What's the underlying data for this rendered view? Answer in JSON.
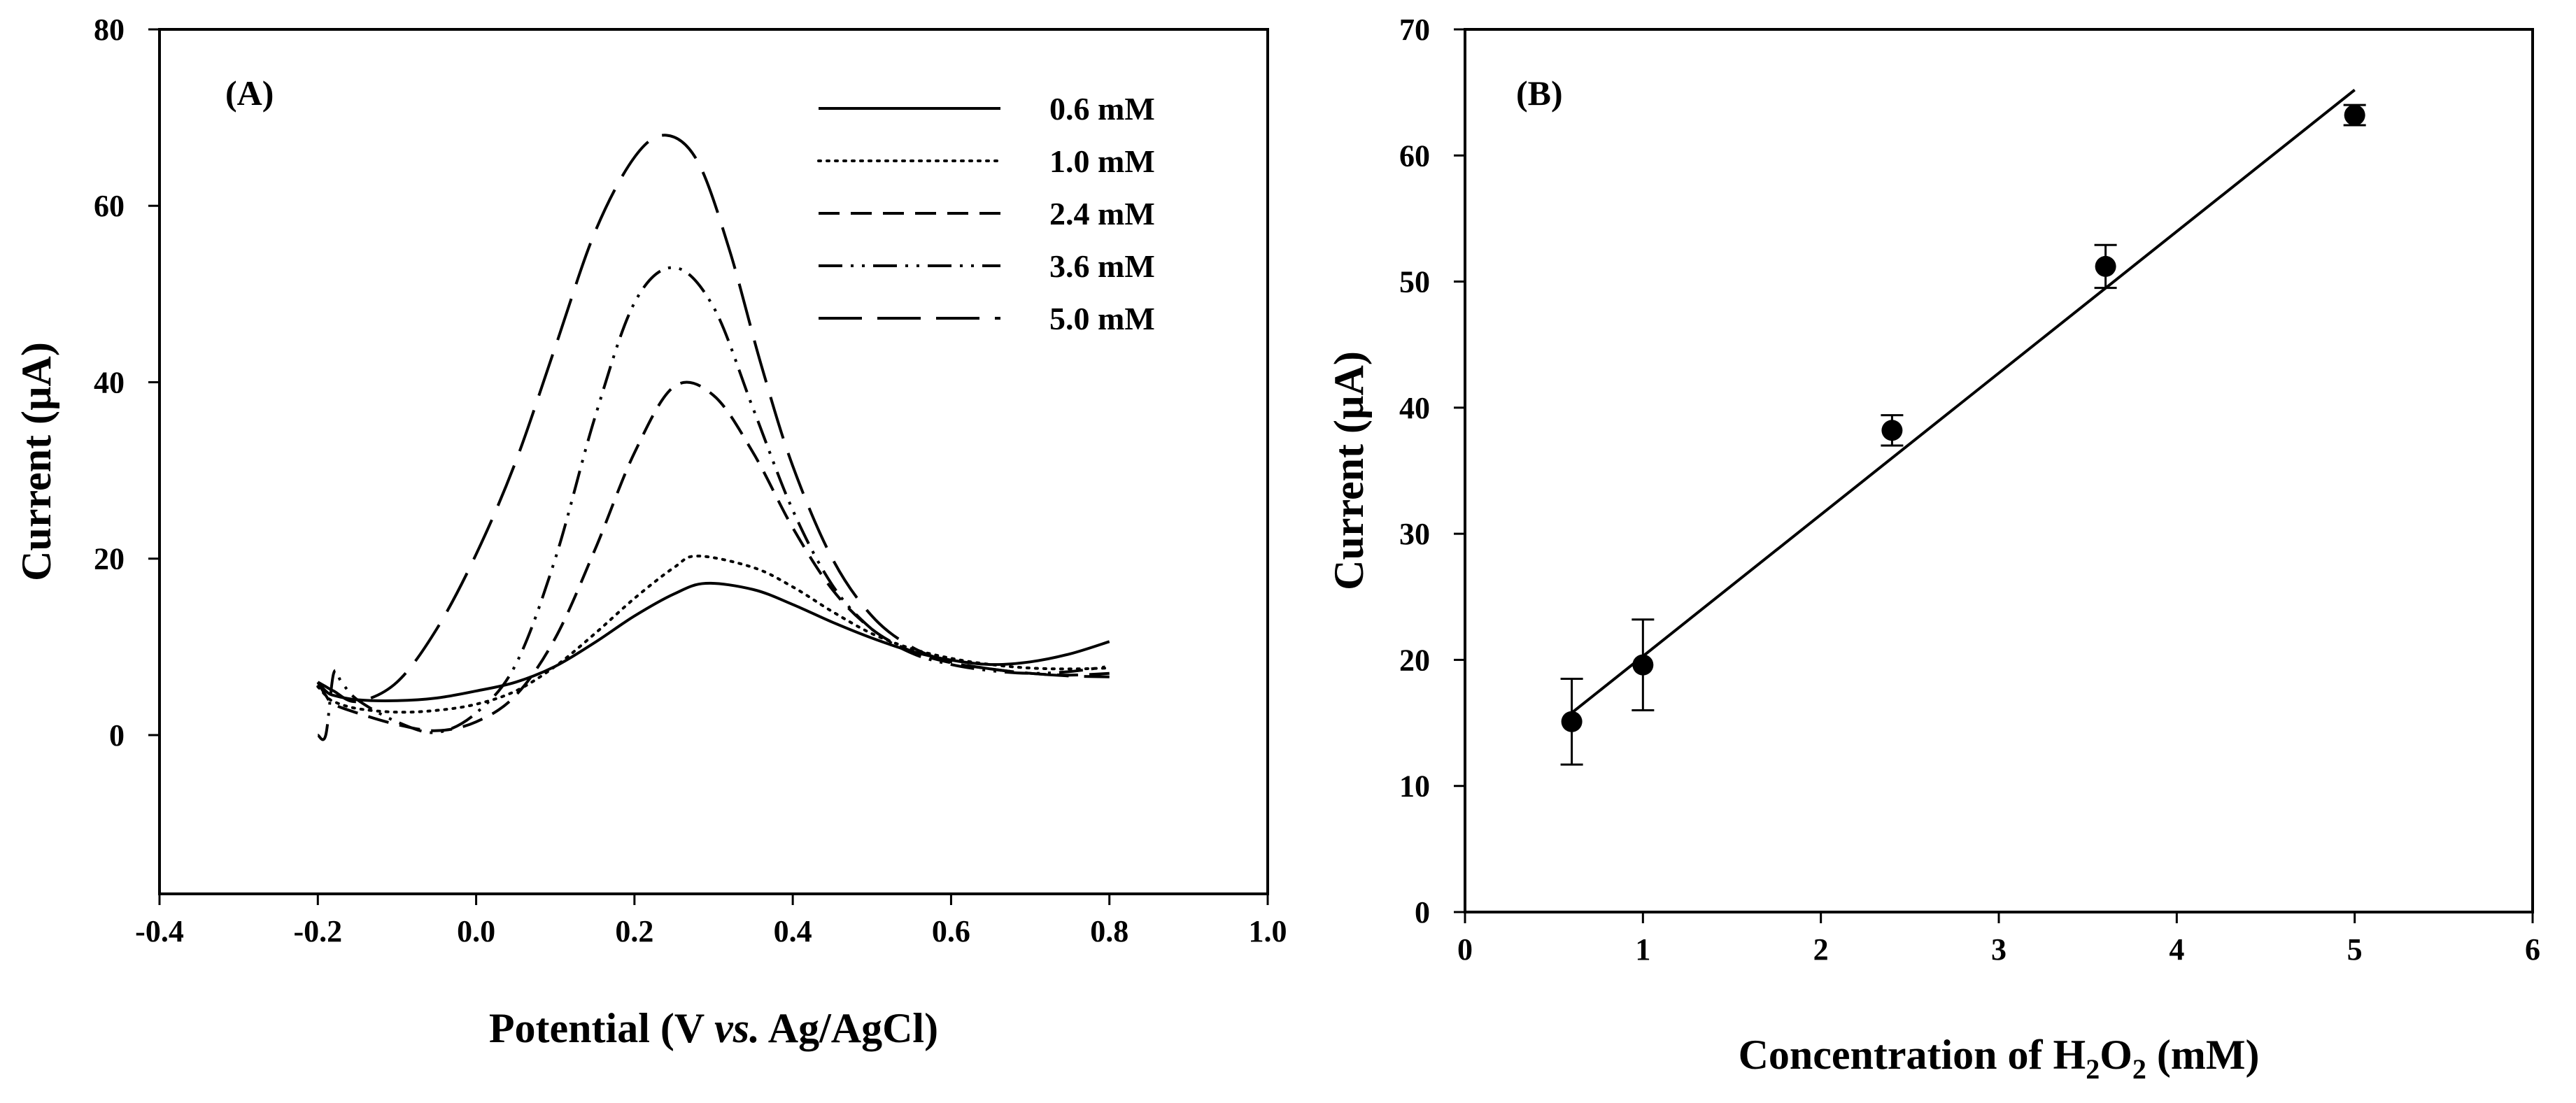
{
  "chart_data": [
    {
      "type": "line",
      "panel_label": "(A)",
      "xlabel_parts": [
        "Potential (V ",
        "vs.",
        " Ag/AgCl)"
      ],
      "ylabel": "Current (µA)",
      "xlim": [
        -0.4,
        1.0
      ],
      "ylim": [
        -18,
        80
      ],
      "x_ticks": [
        -0.4,
        -0.2,
        0.0,
        0.2,
        0.4,
        0.6,
        0.8,
        1.0
      ],
      "x_tick_labels": [
        "-0.4",
        "-0.2",
        "0.0",
        "0.2",
        "0.4",
        "0.6",
        "0.8",
        "1.0"
      ],
      "y_ticks": [
        0,
        20,
        40,
        60,
        80
      ],
      "y_tick_labels": [
        "0",
        "20",
        "40",
        "60",
        "80"
      ],
      "legend_position": "top-right",
      "series": [
        {
          "name": "0.6 mM",
          "dash": "solid",
          "x": [
            -0.2,
            -0.19,
            -0.18,
            -0.15,
            -0.1,
            -0.05,
            0.0,
            0.05,
            0.1,
            0.15,
            0.2,
            0.25,
            0.29,
            0.35,
            0.4,
            0.45,
            0.5,
            0.55,
            0.6,
            0.65,
            0.7,
            0.75,
            0.8
          ],
          "y": [
            6.0,
            5.0,
            4.5,
            4.0,
            3.9,
            4.2,
            5.0,
            6.0,
            7.8,
            10.5,
            13.5,
            16.0,
            17.2,
            16.5,
            14.8,
            12.8,
            11.0,
            9.5,
            8.5,
            8.0,
            8.3,
            9.2,
            10.6
          ]
        },
        {
          "name": "1.0 mM",
          "dash": "dotted",
          "x": [
            -0.2,
            -0.19,
            -0.18,
            -0.15,
            -0.1,
            -0.05,
            0.0,
            0.05,
            0.1,
            0.15,
            0.2,
            0.25,
            0.28,
            0.35,
            0.4,
            0.45,
            0.5,
            0.55,
            0.6,
            0.65,
            0.7,
            0.75,
            0.8
          ],
          "y": [
            5.5,
            4.5,
            3.8,
            3.0,
            2.6,
            2.8,
            3.5,
            5.0,
            7.8,
            11.5,
            15.5,
            19.0,
            20.3,
            19.0,
            16.8,
            14.0,
            11.5,
            9.8,
            8.7,
            8.0,
            7.6,
            7.5,
            7.6
          ]
        },
        {
          "name": "2.4 mM",
          "dash": "dashed",
          "x": [
            -0.2,
            -0.19,
            -0.18,
            -0.15,
            -0.1,
            -0.05,
            0.0,
            0.05,
            0.1,
            0.15,
            0.2,
            0.25,
            0.3,
            0.35,
            0.4,
            0.45,
            0.5,
            0.55,
            0.6,
            0.65,
            0.7,
            0.75,
            0.8
          ],
          "y": [
            6.0,
            4.5,
            3.5,
            2.5,
            1.2,
            0.5,
            1.5,
            4.5,
            11.0,
            21.0,
            32.0,
            39.5,
            38.5,
            32.0,
            23.5,
            16.5,
            12.0,
            9.5,
            8.2,
            7.5,
            7.0,
            6.8,
            7.0
          ]
        },
        {
          "name": "3.6 mM",
          "dash": "dashdotdot",
          "x": [
            -0.2,
            -0.19,
            -0.18,
            -0.17,
            -0.15,
            -0.1,
            -0.05,
            0.0,
            0.05,
            0.1,
            0.15,
            0.2,
            0.25,
            0.3,
            0.35,
            0.4,
            0.45,
            0.5,
            0.55,
            0.6,
            0.65,
            0.7,
            0.75,
            0.8
          ],
          "y": [
            0.0,
            0.0,
            7.0,
            6.0,
            4.0,
            1.5,
            0.3,
            2.5,
            8.0,
            20.0,
            36.0,
            49.0,
            53.0,
            48.5,
            37.0,
            25.5,
            17.0,
            12.0,
            9.3,
            8.0,
            7.3,
            7.0,
            7.2,
            7.8
          ]
        },
        {
          "name": "5.0 mM",
          "dash": "longdash",
          "x": [
            -0.2,
            -0.19,
            -0.18,
            -0.15,
            -0.1,
            -0.05,
            0.0,
            0.05,
            0.1,
            0.15,
            0.2,
            0.24,
            0.28,
            0.32,
            0.36,
            0.4,
            0.45,
            0.5,
            0.55,
            0.6,
            0.65,
            0.7,
            0.75,
            0.8
          ],
          "y": [
            6.0,
            5.5,
            5.0,
            3.8,
            6.0,
            12.0,
            20.5,
            31.0,
            44.0,
            57.0,
            65.5,
            68.0,
            65.0,
            55.0,
            42.0,
            30.5,
            20.0,
            13.5,
            10.0,
            8.3,
            7.5,
            7.0,
            6.7,
            6.6
          ]
        }
      ]
    },
    {
      "type": "scatter",
      "panel_label": "(B)",
      "xlabel_parts": [
        "Concentration of H",
        "2",
        "O",
        "2",
        " (mM)"
      ],
      "ylabel": "Current (µA)",
      "xlim": [
        0,
        6
      ],
      "ylim": [
        0,
        70
      ],
      "x_ticks": [
        0,
        1,
        2,
        3,
        4,
        5,
        6
      ],
      "x_tick_labels": [
        "0",
        "1",
        "2",
        "3",
        "4",
        "5",
        "6"
      ],
      "y_ticks": [
        0,
        10,
        20,
        30,
        40,
        50,
        60,
        70
      ],
      "y_tick_labels": [
        "0",
        "10",
        "20",
        "30",
        "40",
        "50",
        "60",
        "70"
      ],
      "points": {
        "x": [
          0.6,
          1.0,
          2.4,
          3.6,
          5.0
        ],
        "y": [
          15.1,
          19.6,
          38.2,
          51.2,
          63.2
        ],
        "err": [
          3.4,
          3.6,
          1.2,
          1.7,
          0.8
        ]
      },
      "fit_line": {
        "x": [
          0.6,
          5.0
        ],
        "y": [
          15.8,
          65.2
        ]
      }
    }
  ]
}
